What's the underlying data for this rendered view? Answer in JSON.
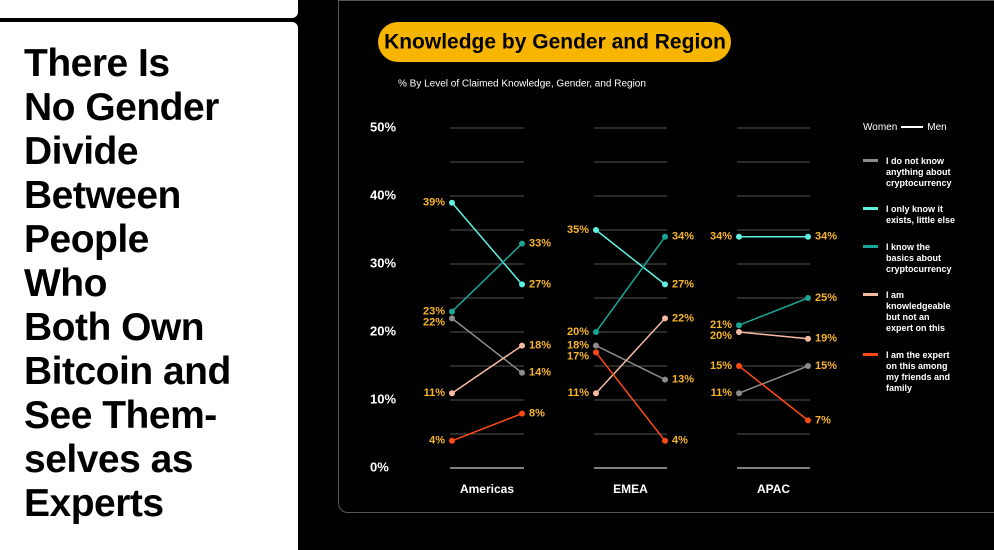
{
  "headline": {
    "lines": [
      "There Is",
      "No Gender",
      "Divide",
      "Between",
      "People",
      "Who",
      "Both Own",
      "Bitcoin and",
      "See Them-",
      "selves as",
      "Experts"
    ]
  },
  "chart_data": {
    "type": "slope",
    "title": "Knowledge by Gender and Region",
    "subtitle": "% By Level of Claimed Knowledge, Gender, and Region",
    "categories": [
      "Americas",
      "EMEA",
      "APAC"
    ],
    "genders": [
      "Women",
      "Men"
    ],
    "ylim": [
      0,
      50
    ],
    "yticks": [
      {
        "value": 0,
        "label": "0%"
      },
      {
        "value": 10,
        "label": "10%"
      },
      {
        "value": 20,
        "label": "20%"
      },
      {
        "value": 30,
        "label": "30%"
      },
      {
        "value": 40,
        "label": "40%"
      },
      {
        "value": 50,
        "label": "50%"
      }
    ],
    "grid": true,
    "series": [
      {
        "name": "I do not know anything about cryptocurrency",
        "color": "#8c8c8c",
        "values": [
          [
            22,
            14
          ],
          [
            18,
            13
          ],
          [
            11,
            15
          ]
        ],
        "value_labels": [
          [
            "22%",
            "14%"
          ],
          [
            "18%",
            "13%"
          ],
          [
            "11%",
            "15%"
          ]
        ]
      },
      {
        "name": "I only know it exists, little else",
        "color": "#5ff2e2",
        "values": [
          [
            39,
            27
          ],
          [
            35,
            27
          ],
          [
            34,
            34
          ]
        ],
        "value_labels": [
          [
            "39%",
            "27%"
          ],
          [
            "35%",
            "27%"
          ],
          [
            "34%",
            "34%"
          ]
        ]
      },
      {
        "name": "I know the basics about cryptocurrency",
        "color": "#1aa595",
        "values": [
          [
            23,
            33
          ],
          [
            20,
            34
          ],
          [
            21,
            25
          ]
        ],
        "value_labels": [
          [
            "23%",
            "33%"
          ],
          [
            "20%",
            "34%"
          ],
          [
            "21%",
            "25%"
          ]
        ]
      },
      {
        "name": "I am knowledgeable but not an expert on this",
        "color": "#f7bba3",
        "values": [
          [
            11,
            18
          ],
          [
            11,
            22
          ],
          [
            20,
            19
          ]
        ],
        "value_labels": [
          [
            "11%",
            "18%"
          ],
          [
            "11%",
            "22%"
          ],
          [
            "20%",
            "19%"
          ]
        ]
      },
      {
        "name": "I am the expert on this among my friends and family",
        "color": "#ff4a14",
        "values": [
          [
            4,
            8
          ],
          [
            17,
            4
          ],
          [
            15,
            7
          ]
        ],
        "value_labels": [
          [
            "4%",
            "8%"
          ],
          [
            "17%",
            "4%"
          ],
          [
            "15%",
            "7%"
          ]
        ]
      }
    ]
  }
}
